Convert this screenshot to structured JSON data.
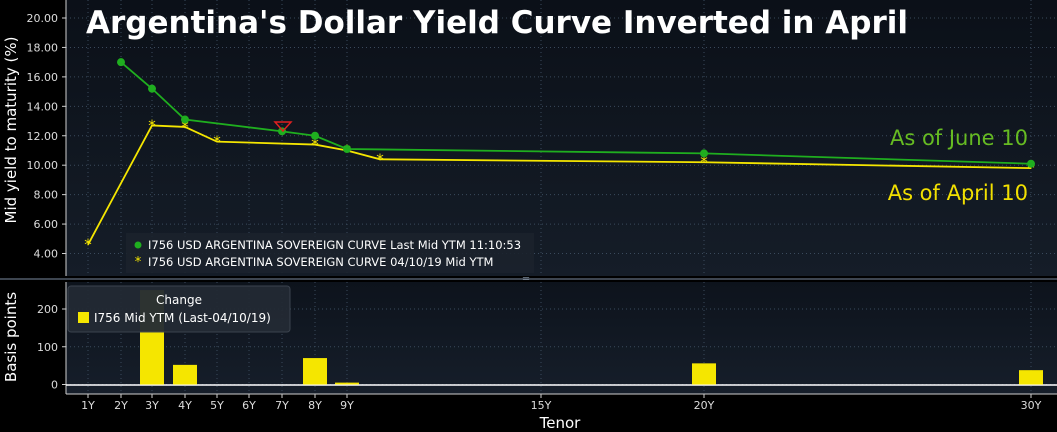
{
  "title": "Argentina's Dollar Yield Curve Inverted in April",
  "annotations": {
    "june": "As of June 10",
    "april": "As of April 10"
  },
  "colors": {
    "june": "#1fae1f",
    "april": "#f5e600",
    "bar": "#f5e600",
    "grid": "#3a4a5c",
    "axis": "#ffffff"
  },
  "chart_data": [
    {
      "type": "line",
      "ylabel": "Mid yield to maturity (%)",
      "ylim": [
        3.0,
        20.5
      ],
      "yticks": [
        "4.00",
        "6.00",
        "8.00",
        "10.00",
        "12.00",
        "14.00",
        "16.00",
        "18.00",
        "20.00"
      ],
      "legend": {
        "placement": "bottom-left",
        "entries": [
          "I756 USD ARGENTINA SOVEREIGN CURVE Last Mid YTM 11:10:53",
          "I756 USD ARGENTINA SOVEREIGN CURVE 04/10/19 Mid YTM"
        ]
      },
      "series": [
        {
          "name": "I756 USD ARGENTINA SOVEREIGN CURVE Last Mid YTM 11:10:53",
          "x": [
            2,
            3,
            4,
            7,
            8,
            9,
            20,
            30
          ],
          "values": [
            17.0,
            15.2,
            13.1,
            12.3,
            12.0,
            11.1,
            10.8,
            10.1
          ]
        },
        {
          "name": "I756 USD ARGENTINA SOVEREIGN CURVE 04/10/19 Mid YTM",
          "x": [
            1,
            3,
            4,
            5,
            8,
            9,
            10,
            20,
            30
          ],
          "values": [
            4.6,
            12.7,
            12.6,
            11.6,
            11.4,
            11.0,
            10.4,
            10.2,
            9.8
          ]
        }
      ]
    },
    {
      "type": "bar",
      "ylabel": "Basis points",
      "ylim": [
        -20,
        260
      ],
      "yticks": [
        "0",
        "100",
        "200"
      ],
      "legend": {
        "placement": "top-left",
        "title": "Change",
        "entries": [
          "I756 Mid YTM (Last-04/10/19)"
        ]
      },
      "series": [
        {
          "name": "I756 Mid YTM (Last-04/10/19)",
          "x": [
            3,
            4,
            8,
            9,
            20,
            30
          ],
          "values": [
            250,
            52,
            70,
            5,
            56,
            38
          ]
        }
      ]
    }
  ],
  "xaxis": {
    "label": "Tenor",
    "ticks": [
      {
        "x": 1,
        "label": "1Y"
      },
      {
        "x": 2,
        "label": "2Y"
      },
      {
        "x": 3,
        "label": "3Y"
      },
      {
        "x": 4,
        "label": "4Y"
      },
      {
        "x": 5,
        "label": "5Y"
      },
      {
        "x": 6,
        "label": "6Y"
      },
      {
        "x": 7,
        "label": "7Y"
      },
      {
        "x": 8,
        "label": "8Y"
      },
      {
        "x": 9,
        "label": "9Y"
      },
      {
        "x": 15,
        "label": "15Y"
      },
      {
        "x": 20,
        "label": "20Y"
      },
      {
        "x": 30,
        "label": "30Y"
      }
    ]
  }
}
